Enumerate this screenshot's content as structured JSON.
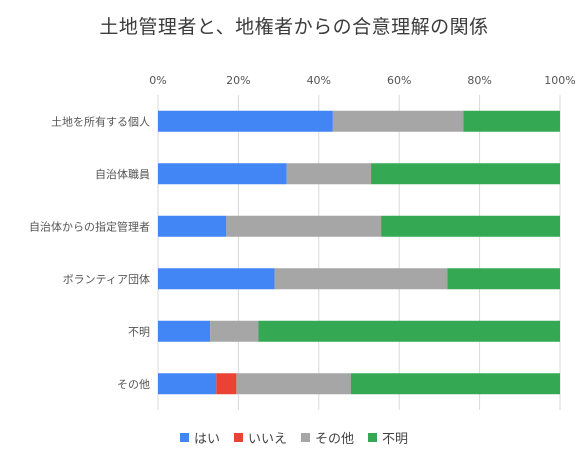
{
  "chart_data": {
    "type": "bar",
    "orientation": "horizontal",
    "stacked": "percent",
    "title": "土地管理者と、地権者からの合意理解の関係",
    "categories": [
      "土地を所有する個人",
      "自治体職員",
      "自治体からの指定管理者",
      "ボランティア団体",
      "不明",
      "その他"
    ],
    "series": [
      {
        "name": "はい",
        "color": "#4285f4",
        "values": [
          43.5,
          32,
          17,
          29,
          13,
          14.5
        ]
      },
      {
        "name": "いいえ",
        "color": "#ea4335",
        "values": [
          0,
          0,
          0,
          0,
          0,
          5
        ]
      },
      {
        "name": "その他",
        "color": "#a6a6a6",
        "values": [
          32.5,
          21,
          38.5,
          43,
          12,
          28.5
        ]
      },
      {
        "name": "不明",
        "color": "#34a853",
        "values": [
          24,
          47,
          44.5,
          28,
          75,
          52
        ]
      }
    ],
    "xlim": [
      0,
      100
    ],
    "xticks": [
      "0%",
      "20%",
      "40%",
      "60%",
      "80%",
      "100%"
    ],
    "grid": true,
    "legend_position": "bottom"
  }
}
